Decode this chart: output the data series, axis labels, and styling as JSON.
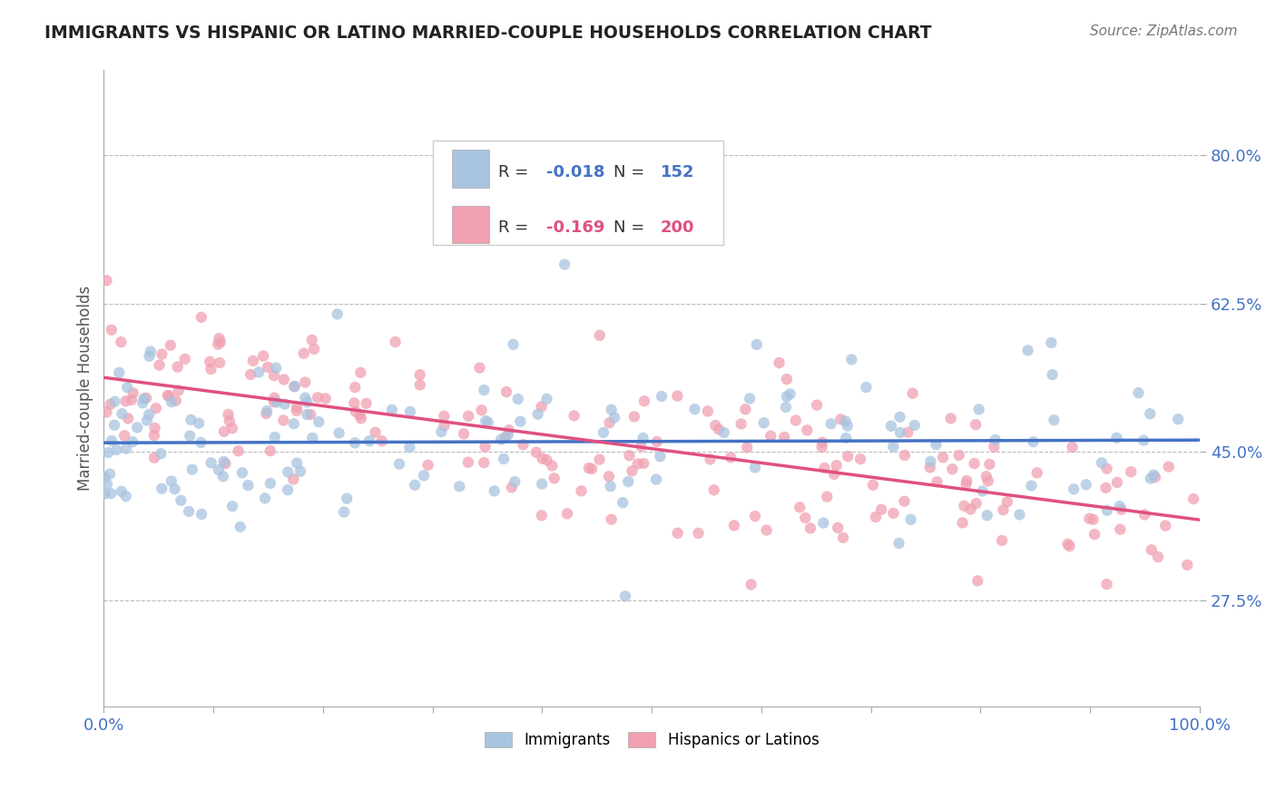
{
  "title": "IMMIGRANTS VS HISPANIC OR LATINO MARRIED-COUPLE HOUSEHOLDS CORRELATION CHART",
  "source": "Source: ZipAtlas.com",
  "ylabel": "Married-couple Households",
  "xlabel": "",
  "xlim": [
    0.0,
    1.0
  ],
  "ylim": [
    0.15,
    0.9
  ],
  "xticks": [
    0.0,
    0.1,
    0.2,
    0.3,
    0.4,
    0.5,
    0.6,
    0.7,
    0.8,
    0.9,
    1.0
  ],
  "xticklabels": [
    "0.0%",
    "",
    "",
    "",
    "",
    "",
    "",
    "",
    "",
    "",
    "100.0%"
  ],
  "ytick_positions": [
    0.275,
    0.45,
    0.625,
    0.8
  ],
  "ytick_labels": [
    "27.5%",
    "45.0%",
    "62.5%",
    "80.0%"
  ],
  "blue_R": -0.018,
  "blue_N": 152,
  "pink_R": -0.169,
  "pink_N": 200,
  "blue_color": "#a8c4e0",
  "pink_color": "#f0a0b0",
  "blue_line_color": "#4472c4",
  "pink_line_color": "#e05080",
  "legend_blue_label": "Immigrants",
  "legend_pink_label": "Hispanics or Latinos",
  "blue_seed": 42,
  "pink_seed": 99,
  "background_color": "#ffffff",
  "grid_color": "#bbbbbb",
  "title_color": "#222222",
  "axis_label_color": "#555555",
  "tick_color_x": "#4472c4",
  "tick_color_y": "#4472c4",
  "annotation_color_blue": "#4472c4",
  "annotation_color_pink": "#e05080"
}
